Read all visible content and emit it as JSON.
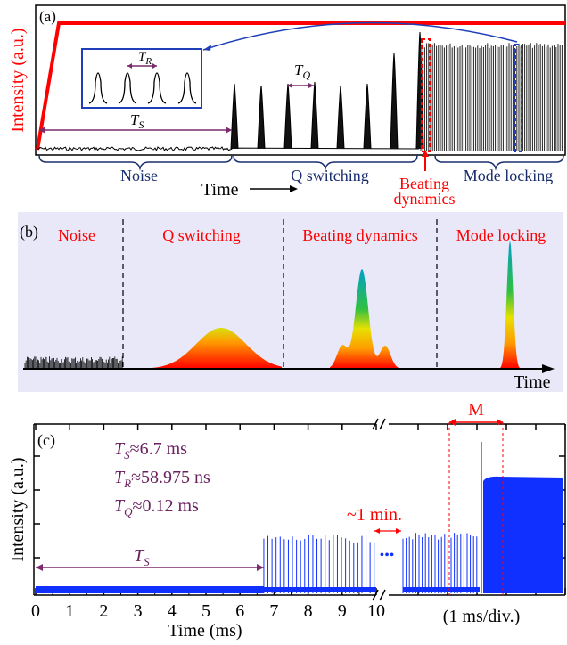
{
  "panel_a": {
    "label": "(a)",
    "ylabel": "Intensity (a.u.)",
    "inset_label": "T",
    "inset_sub": "R",
    "tq_label": "T",
    "tq_sub": "Q",
    "ts_label": "T",
    "ts_sub": "S",
    "stages": [
      "Noise",
      "Q switching",
      "Beating",
      "dynamics",
      "Mode locking"
    ],
    "time_label": "Time",
    "colors": {
      "red": "#ff0000",
      "blue": "#1f3fb8",
      "purple": "#7b2a6e",
      "navy": "#1a2e6e"
    }
  },
  "panel_b": {
    "label": "(b)",
    "stages": [
      "Noise",
      "Q switching",
      "Beating dynamics",
      "Mode locking"
    ],
    "xlabel": "Time",
    "bg": "#e8e8f8"
  },
  "panel_c": {
    "label": "(c)",
    "ylabel": "Intensity (a.u.)",
    "xlabel": "Time (ms)",
    "div_label": "(1 ms/div.)",
    "gap_label": "~1 min.",
    "ellipsis": "•••",
    "m_label": "M",
    "ts_label": "T",
    "ts_sub": "S",
    "params": [
      {
        "sym": "T",
        "sub": "S",
        "text": "≈6.7 ms"
      },
      {
        "sym": "T",
        "sub": "R",
        "text": "≈58.975 ns"
      },
      {
        "sym": "T",
        "sub": "Q",
        "text": "≈0.12 ms"
      }
    ],
    "xticks": [
      "0",
      "1",
      "2",
      "3",
      "4",
      "5",
      "6",
      "7",
      "8",
      "9",
      "10"
    ],
    "color": "#1030ff"
  },
  "chart_data": [
    {
      "type": "line",
      "title": "",
      "xlabel": "Time (ms)",
      "ylabel": "Intensity (a.u.)",
      "xlim": [
        0,
        10
      ],
      "annotations": [
        "TS≈6.7 ms",
        "TR≈58.975 ns",
        "TQ≈0.12 ms",
        "~1 min.",
        "M",
        "(1 ms/div.)"
      ],
      "segments": [
        {
          "name": "noise",
          "x": [
            0,
            6.7
          ]
        },
        {
          "name": "Q switching",
          "x": [
            6.7,
            10
          ]
        }
      ]
    }
  ]
}
